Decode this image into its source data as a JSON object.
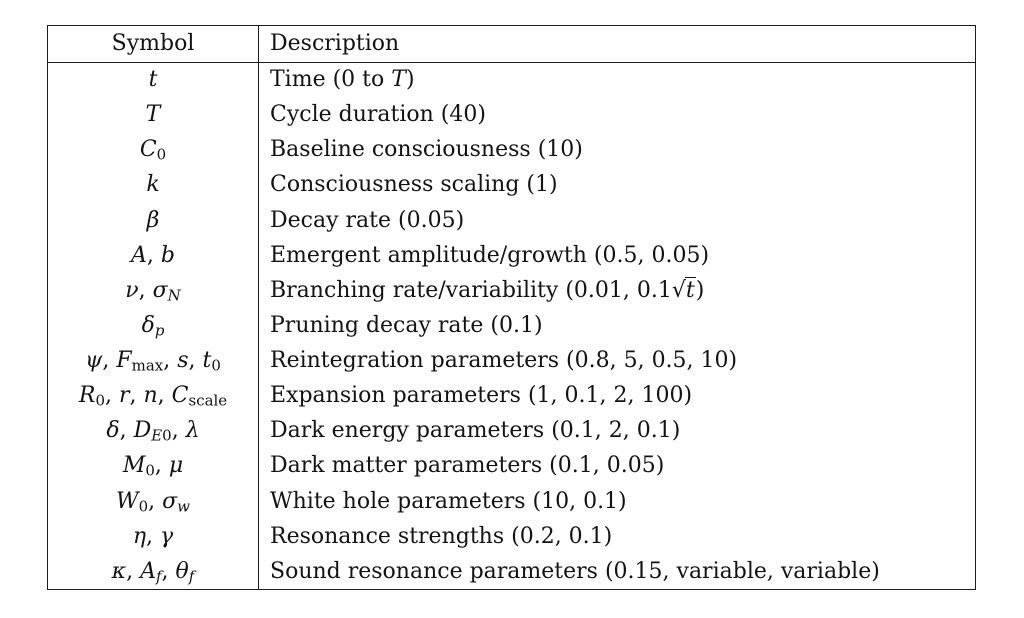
{
  "table": {
    "columns": [
      "Symbol",
      "Description"
    ],
    "rows": [
      {
        "symbol": [
          {
            "i": "t"
          }
        ],
        "description": [
          {
            "t": "Time (0 to "
          },
          {
            "i": "T"
          },
          {
            "t": ")"
          }
        ]
      },
      {
        "symbol": [
          {
            "i": "T"
          }
        ],
        "description": [
          {
            "t": "Cycle duration (40)"
          }
        ]
      },
      {
        "symbol": [
          {
            "i": "C"
          },
          {
            "sub": "0"
          }
        ],
        "description": [
          {
            "t": "Baseline consciousness (10)"
          }
        ]
      },
      {
        "symbol": [
          {
            "i": "k"
          }
        ],
        "description": [
          {
            "t": "Consciousness scaling (1)"
          }
        ]
      },
      {
        "symbol": [
          {
            "i": "β"
          }
        ],
        "description": [
          {
            "t": "Decay rate (0.05)"
          }
        ]
      },
      {
        "symbol": [
          {
            "i": "A"
          },
          {
            "t": ", "
          },
          {
            "i": "b"
          }
        ],
        "description": [
          {
            "t": "Emergent amplitude/growth (0.5, 0.05)"
          }
        ]
      },
      {
        "symbol": [
          {
            "i": "ν"
          },
          {
            "t": ", "
          },
          {
            "i": "σ"
          },
          {
            "subi": "N"
          }
        ],
        "description": [
          {
            "t": "Branching rate/variability (0.01, 0.1"
          },
          {
            "sqrt": "t"
          },
          {
            "t": ")"
          }
        ]
      },
      {
        "symbol": [
          {
            "i": "δ"
          },
          {
            "subi": "p"
          }
        ],
        "description": [
          {
            "t": "Pruning decay rate (0.1)"
          }
        ]
      },
      {
        "symbol": [
          {
            "i": "ψ"
          },
          {
            "t": ", "
          },
          {
            "i": "F"
          },
          {
            "sub": "max"
          },
          {
            "t": ", "
          },
          {
            "i": "s"
          },
          {
            "t": ", "
          },
          {
            "i": "t"
          },
          {
            "sub": "0"
          }
        ],
        "description": [
          {
            "t": "Reintegration parameters (0.8, 5, 0.5, 10)"
          }
        ]
      },
      {
        "symbol": [
          {
            "i": "R"
          },
          {
            "sub": "0"
          },
          {
            "t": ", "
          },
          {
            "i": "r"
          },
          {
            "t": ", "
          },
          {
            "i": "n"
          },
          {
            "t": ", "
          },
          {
            "i": "C"
          },
          {
            "sub": "scale"
          }
        ],
        "description": [
          {
            "t": "Expansion parameters (1, 0.1, 2, 100)"
          }
        ]
      },
      {
        "symbol": [
          {
            "i": "δ"
          },
          {
            "t": ", "
          },
          {
            "i": "D"
          },
          {
            "subi": "E"
          },
          {
            "sub": "0"
          },
          {
            "t": ", "
          },
          {
            "i": "λ"
          }
        ],
        "description": [
          {
            "t": "Dark energy parameters (0.1, 2, 0.1)"
          }
        ]
      },
      {
        "symbol": [
          {
            "i": "M"
          },
          {
            "sub": "0"
          },
          {
            "t": ", "
          },
          {
            "i": "μ"
          }
        ],
        "description": [
          {
            "t": "Dark matter parameters (0.1, 0.05)"
          }
        ]
      },
      {
        "symbol": [
          {
            "i": "W"
          },
          {
            "sub": "0"
          },
          {
            "t": ", "
          },
          {
            "i": "σ"
          },
          {
            "subi": "w"
          }
        ],
        "description": [
          {
            "t": "White hole parameters (10, 0.1)"
          }
        ]
      },
      {
        "symbol": [
          {
            "i": "η"
          },
          {
            "t": ", "
          },
          {
            "i": "γ"
          }
        ],
        "description": [
          {
            "t": "Resonance strengths (0.2, 0.1)"
          }
        ]
      },
      {
        "symbol": [
          {
            "i": "κ"
          },
          {
            "t": ", "
          },
          {
            "i": "A"
          },
          {
            "subi": "f"
          },
          {
            "t": ", "
          },
          {
            "i": "θ"
          },
          {
            "subi": "f"
          }
        ],
        "description": [
          {
            "t": "Sound resonance parameters (0.15, variable, variable)"
          }
        ]
      }
    ]
  },
  "colors": {
    "border": "#1c1c1c",
    "text": "#131313",
    "background": "#ffffff"
  }
}
